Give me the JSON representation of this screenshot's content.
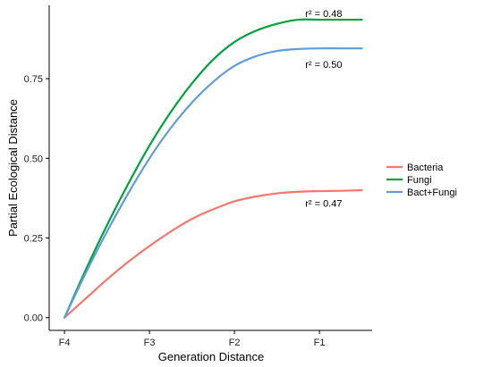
{
  "chart_data": {
    "type": "line",
    "xlabel": "Generation Distance",
    "ylabel": "Partial Ecological Distance",
    "x_ticks": [
      {
        "x": 0,
        "label": "F4"
      },
      {
        "x": 1,
        "label": "F3"
      },
      {
        "x": 2,
        "label": "F2"
      },
      {
        "x": 3,
        "label": "F1"
      }
    ],
    "xlim": [
      -0.18,
      3.62
    ],
    "y_ticks": [
      {
        "y": 0.0,
        "label": "0.00"
      },
      {
        "y": 0.25,
        "label": "0.25"
      },
      {
        "y": 0.5,
        "label": "0.50"
      },
      {
        "y": 0.75,
        "label": "0.75"
      }
    ],
    "ylim": [
      -0.04,
      0.98
    ],
    "grid": false,
    "legend_placement": "right",
    "series": [
      {
        "name": "Bacteria",
        "color": "#F8766D",
        "x": [
          0,
          0.25,
          0.5,
          0.75,
          1.0,
          1.25,
          1.5,
          1.75,
          2.0,
          2.25,
          2.5,
          2.75,
          3.0,
          3.25,
          3.5
        ],
        "y": [
          0.0,
          0.06,
          0.12,
          0.175,
          0.225,
          0.27,
          0.31,
          0.34,
          0.365,
          0.38,
          0.39,
          0.395,
          0.397,
          0.398,
          0.4
        ]
      },
      {
        "name": "Fungi",
        "color": "#00A33C",
        "x": [
          0,
          0.25,
          0.5,
          0.75,
          1.0,
          1.25,
          1.5,
          1.75,
          2.0,
          2.25,
          2.5,
          2.75,
          3.0,
          3.25,
          3.5
        ],
        "y": [
          0.0,
          0.15,
          0.29,
          0.42,
          0.54,
          0.645,
          0.735,
          0.81,
          0.865,
          0.9,
          0.922,
          0.935,
          0.935,
          0.935,
          0.935
        ]
      },
      {
        "name": "Bact+Fungi",
        "color": "#619CDB",
        "x": [
          0,
          0.25,
          0.5,
          0.75,
          1.0,
          1.25,
          1.5,
          1.75,
          2.0,
          2.25,
          2.5,
          2.75,
          3.0,
          3.25,
          3.5
        ],
        "y": [
          0.0,
          0.14,
          0.27,
          0.39,
          0.5,
          0.595,
          0.675,
          0.74,
          0.79,
          0.82,
          0.837,
          0.843,
          0.845,
          0.845,
          0.845
        ]
      }
    ],
    "annotations": [
      {
        "text": "r² = 0.48",
        "x": 3.05,
        "y": 0.955,
        "series": "Fungi"
      },
      {
        "text": "r² = 0.50",
        "x": 3.05,
        "y": 0.795,
        "series": "Bact+Fungi"
      },
      {
        "text": "r² = 0.47",
        "x": 3.05,
        "y": 0.36,
        "series": "Bacteria"
      }
    ]
  }
}
